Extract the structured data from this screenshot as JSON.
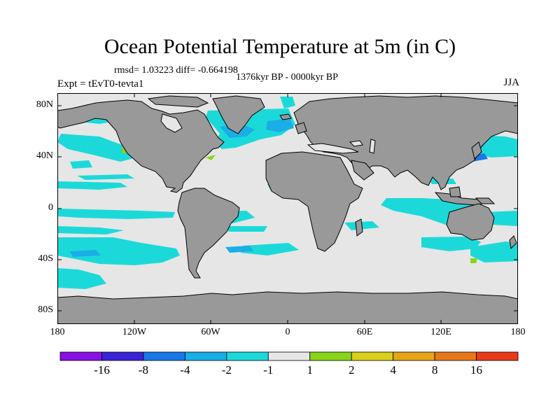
{
  "title": "Ocean Potential Temperature at 5m (in C)",
  "stats": "rmsd= 1.03223 diff= -0.664198",
  "period": "1376kyr BP - 0000kyr BP",
  "experiment": "Expt = tEvT0-tevta1",
  "season": "JJA",
  "axes": {
    "lat_labels": [
      "80N",
      "40N",
      "0",
      "40S",
      "80S"
    ],
    "lat_values": [
      80,
      40,
      0,
      -40,
      -80
    ],
    "lon_labels": [
      "180",
      "120W",
      "60W",
      "0",
      "60E",
      "120E",
      "180"
    ],
    "lon_values": [
      -180,
      -120,
      -60,
      0,
      60,
      120,
      180
    ]
  },
  "colorbar": {
    "bins": [
      {
        "color": "#8a10e6"
      },
      {
        "color": "#3a22d6"
      },
      {
        "color": "#1878e6"
      },
      {
        "color": "#19aee6"
      },
      {
        "color": "#1cd9d9"
      },
      {
        "color": "#e6e6e6"
      },
      {
        "color": "#88d418"
      },
      {
        "color": "#d8d01a"
      },
      {
        "color": "#e6a418"
      },
      {
        "color": "#e6781a"
      },
      {
        "color": "#e83a18"
      }
    ],
    "labels": [
      "-16",
      "-8",
      "-4",
      "-2",
      "-1",
      "1",
      "2",
      "4",
      "8",
      "16"
    ]
  },
  "colors": {
    "land": "#999999",
    "ocean_neutral": "#e6e6e6",
    "minus1": "#1cd9d9",
    "minus2": "#19aee6",
    "minus4": "#1878e6",
    "minus8": "#3a22d6",
    "plus1": "#88d418"
  }
}
